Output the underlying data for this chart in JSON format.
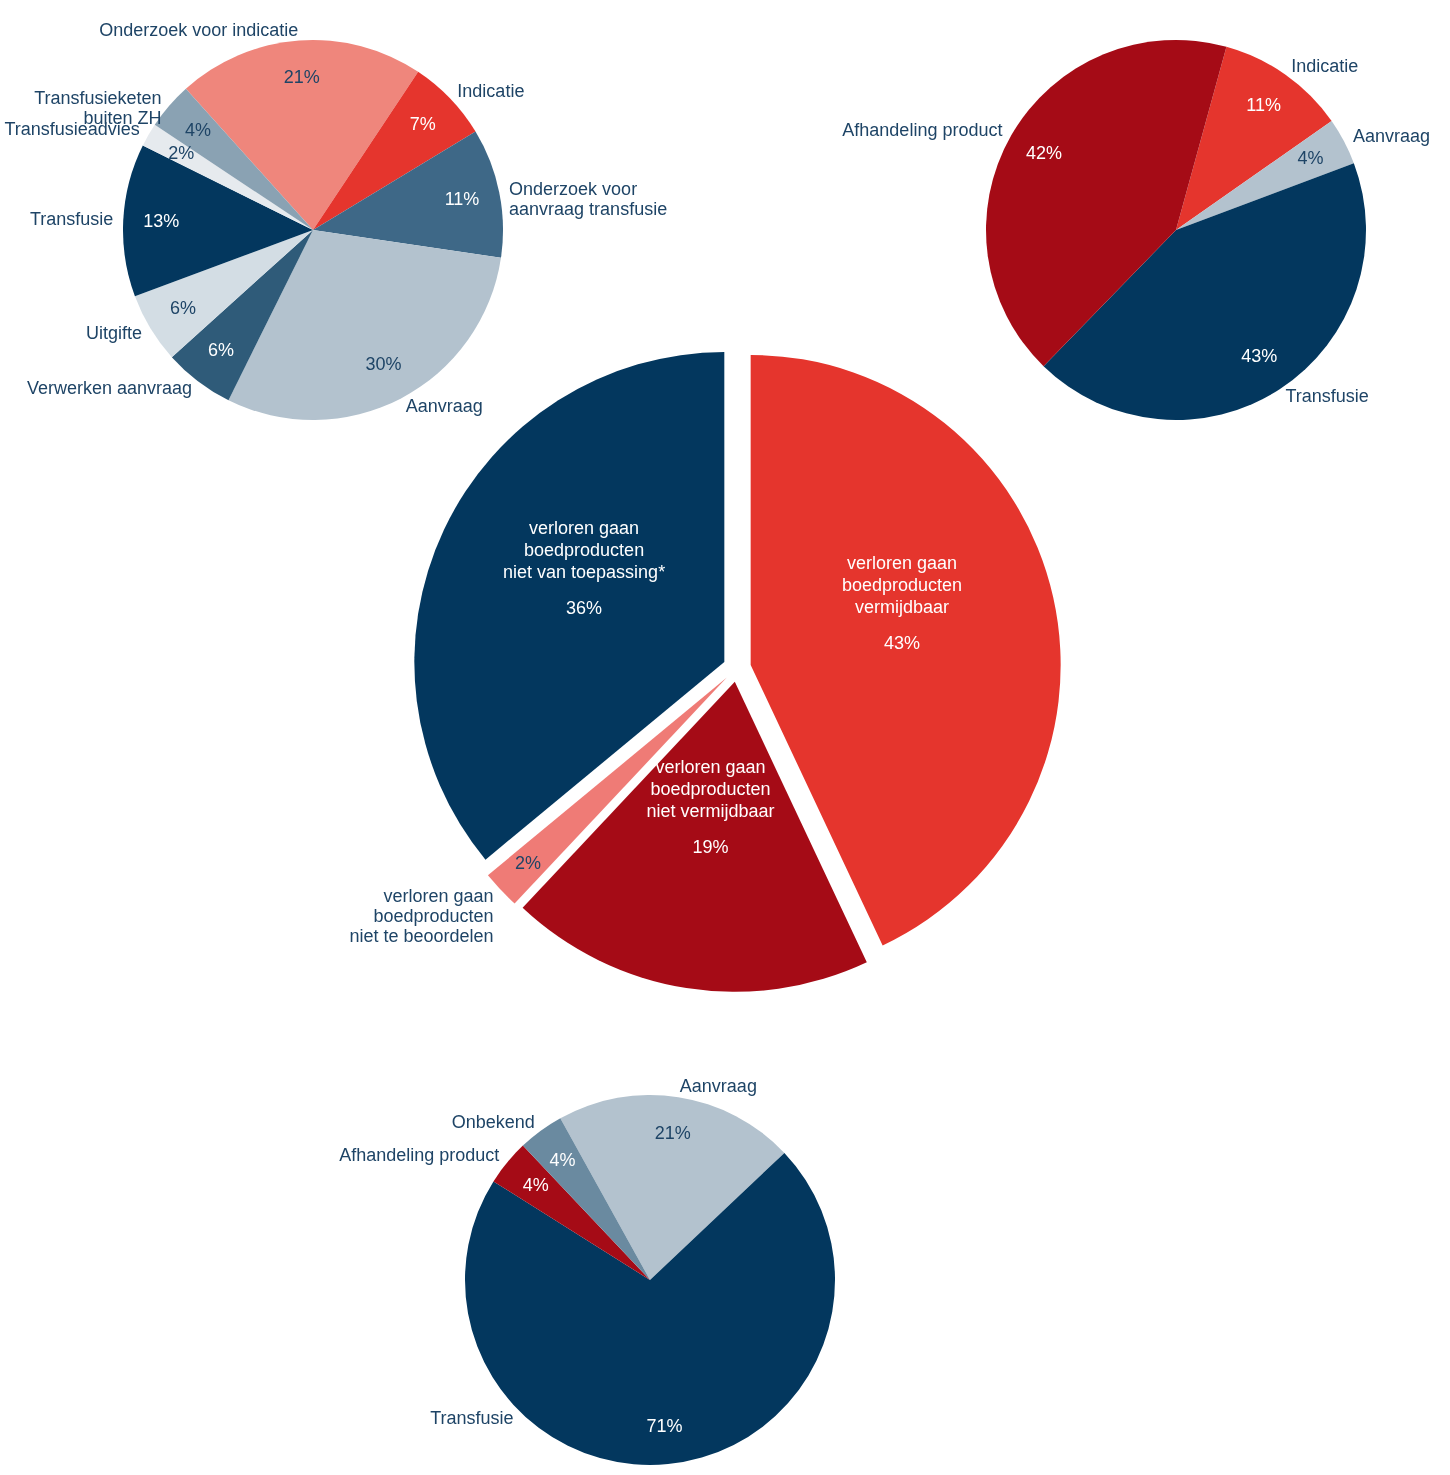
{
  "chart_data": [
    {
      "type": "pie",
      "categories": [
        "Onderzoek voor indicatie",
        "Indicatie",
        "Onderzoek voor\naanvraag transfusie",
        "Aanvraag",
        "Verwerken aanvraag",
        "Uitgifte",
        "Transfusie",
        "Transfusieadvies",
        "Transfusieketen\nbuiten ZH"
      ],
      "values": [
        21,
        7,
        11,
        30,
        6,
        6,
        13,
        2,
        4
      ],
      "colors": [
        "#ef867c",
        "#e5352d",
        "#3e6887",
        "#b3c2ce",
        "#2f5b79",
        "#d3dde4",
        "#03375e",
        "#e6eaee",
        "#8aa2b3"
      ],
      "value_labels": [
        "21%",
        "7%",
        "11%",
        "30%",
        "6%",
        "6%",
        "13%",
        "2%",
        "4%"
      ]
    },
    {
      "type": "pie",
      "categories": [
        "Indicatie",
        "Aanvraag",
        "Transfusie",
        "Afhandeling product"
      ],
      "values": [
        11,
        4,
        43,
        42
      ],
      "colors": [
        "#e5352d",
        "#b3c2ce",
        "#03375e",
        "#a50b16"
      ],
      "value_labels": [
        "11%",
        "4%",
        "43%",
        "42%"
      ]
    },
    {
      "type": "pie",
      "categories": [
        "verloren gaan\nboedproducten\nvermijdbaar",
        "verloren gaan\nboedproducten\nniet vermijdbaar",
        "verloren gaan\nboedproducten\nniet te beoordelen",
        "verloren gaan\nboedproducten\nniet van toepassing*"
      ],
      "values": [
        43,
        19,
        2,
        36
      ],
      "colors": [
        "#e5352d",
        "#a50b16",
        "#ef7b76",
        "#03375e"
      ],
      "value_labels": [
        "43%",
        "19%",
        "2%",
        "36%"
      ]
    },
    {
      "type": "pie",
      "categories": [
        "Aanvraag",
        "Transfusie",
        "Afhandeling product",
        "Onbekend"
      ],
      "values": [
        21,
        71,
        4,
        4
      ],
      "colors": [
        "#b3c2ce",
        "#03375e",
        "#a50b16",
        "#6a8aa0"
      ],
      "value_labels": [
        "21%",
        "71%",
        "4%",
        "4%"
      ]
    }
  ]
}
